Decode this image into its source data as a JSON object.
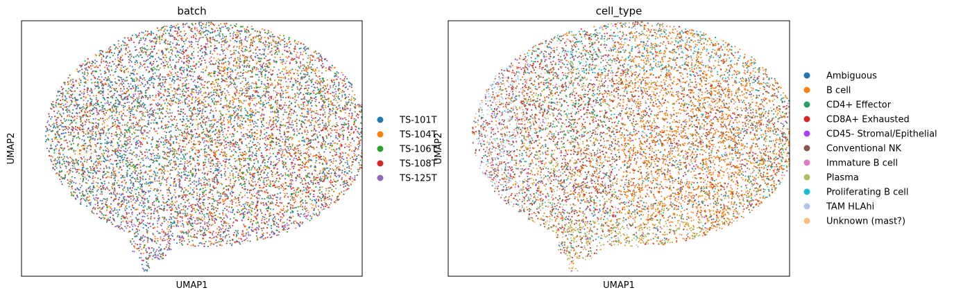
{
  "chart_data": [
    {
      "type": "scatter",
      "title": "batch",
      "xlabel": "UMAP1",
      "ylabel": "UMAP2",
      "ticks": "none",
      "legend": "right",
      "series": [
        {
          "name": "TS-101T",
          "color": "#1f77b4"
        },
        {
          "name": "TS-104T",
          "color": "#ff7f0e"
        },
        {
          "name": "TS-106T",
          "color": "#2ca02c"
        },
        {
          "name": "TS-108T",
          "color": "#d62728"
        },
        {
          "name": "TS-125T",
          "color": "#9467bd"
        }
      ]
    },
    {
      "type": "scatter",
      "title": "cell_type",
      "xlabel": "UMAP1",
      "ylabel": "UMAP2",
      "ticks": "none",
      "legend": "right",
      "series": [
        {
          "name": "Ambiguous",
          "color": "#1f77b4"
        },
        {
          "name": "B cell",
          "color": "#ff7f0e"
        },
        {
          "name": "CD4+ Effector",
          "color": "#279e68"
        },
        {
          "name": "CD8A+ Exhausted",
          "color": "#d62728"
        },
        {
          "name": "CD45- Stromal/Epithelial",
          "color": "#aa40fc"
        },
        {
          "name": "Conventional NK",
          "color": "#8c564b"
        },
        {
          "name": "Immature B cell",
          "color": "#e377c2"
        },
        {
          "name": "Plasma",
          "color": "#b5bd61"
        },
        {
          "name": "Proliferating B cell",
          "color": "#17becf"
        },
        {
          "name": "TAM HLAhi",
          "color": "#aec7e8"
        },
        {
          "name": "Unknown (mast?)",
          "color": "#ffbb78"
        }
      ]
    }
  ]
}
